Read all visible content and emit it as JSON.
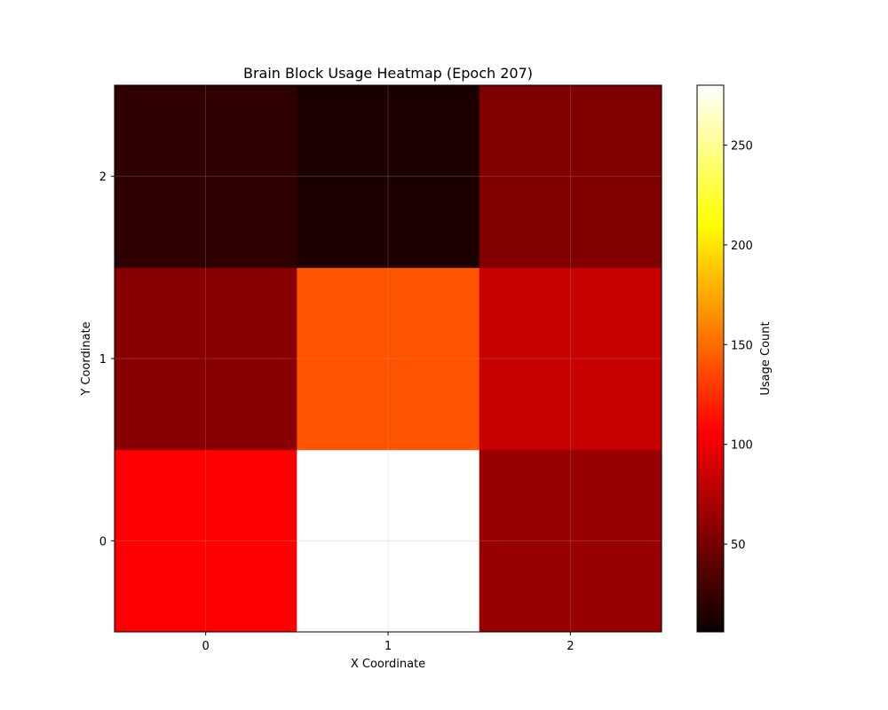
{
  "chart_data": {
    "type": "heatmap",
    "title": "Brain Block Usage Heatmap (Epoch 207)",
    "xlabel": "X Coordinate",
    "ylabel": "Y Coordinate",
    "x": [
      0,
      1,
      2
    ],
    "y": [
      0,
      1,
      2
    ],
    "values": [
      [
        105,
        280,
        62
      ],
      [
        55,
        140,
        80
      ],
      [
        20,
        13,
        52
      ]
    ],
    "colormap": "hot",
    "vmin": 6,
    "vmax": 280,
    "grid": true,
    "colorbar": {
      "label": "Usage Count",
      "ticks": [
        50,
        100,
        150,
        200,
        250
      ]
    }
  }
}
